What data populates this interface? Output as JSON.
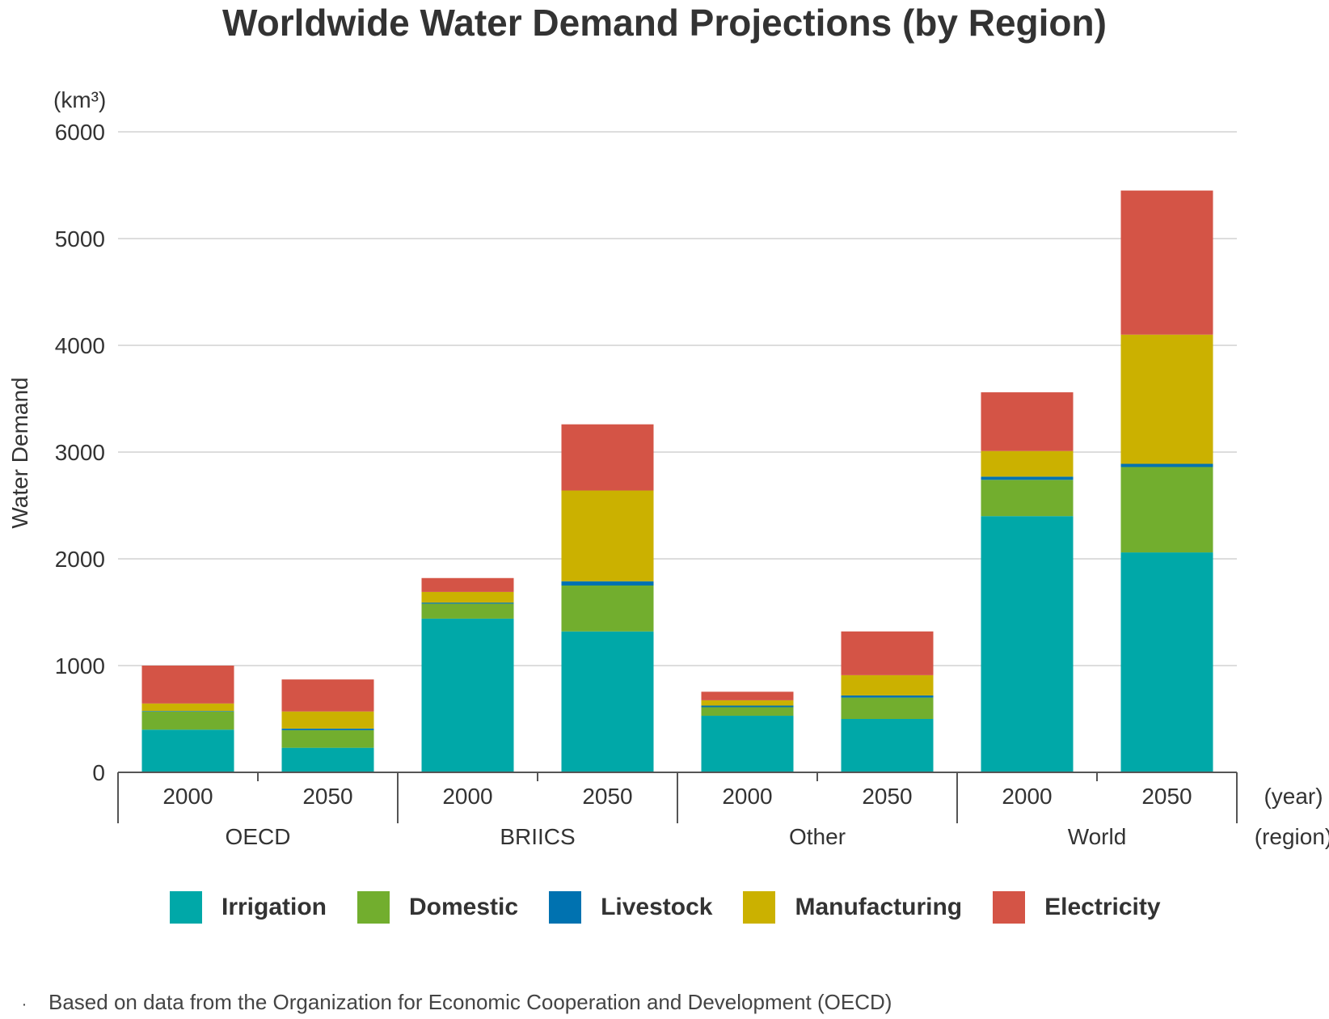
{
  "chart_data": {
    "type": "bar",
    "stacked": true,
    "title": "Worldwide Water Demand Projections (by Region)",
    "ylabel": "Water Demand",
    "yunit": "(km³)",
    "ylim": [
      0,
      6000
    ],
    "yticks": [
      0,
      1000,
      2000,
      3000,
      4000,
      5000,
      6000
    ],
    "grid": true,
    "x_axis_suffix_year": "(year)",
    "x_axis_suffix_region": "(region)",
    "groups": [
      {
        "region": "OECD",
        "years": [
          "2000",
          "2050"
        ]
      },
      {
        "region": "BRIICS",
        "years": [
          "2000",
          "2050"
        ]
      },
      {
        "region": "Other",
        "years": [
          "2000",
          "2050"
        ]
      },
      {
        "region": "World",
        "years": [
          "2000",
          "2050"
        ]
      }
    ],
    "categories": [
      "OECD 2000",
      "OECD 2050",
      "BRIICS 2000",
      "BRIICS 2050",
      "Other 2000",
      "Other 2050",
      "World 2000",
      "World 2050"
    ],
    "series": [
      {
        "name": "Irrigation",
        "color": "#00a8a8",
        "values": [
          400,
          230,
          1440,
          1320,
          530,
          500,
          2400,
          2060
        ]
      },
      {
        "name": "Domestic",
        "color": "#72ae2e",
        "values": [
          170,
          165,
          140,
          430,
          80,
          200,
          340,
          800
        ]
      },
      {
        "name": "Livestock",
        "color": "#0072b0",
        "values": [
          5,
          15,
          10,
          40,
          15,
          20,
          30,
          30
        ]
      },
      {
        "name": "Manufacturing",
        "color": "#cbb100",
        "values": [
          70,
          160,
          100,
          850,
          50,
          190,
          240,
          1210
        ]
      },
      {
        "name": "Electricity",
        "color": "#d45446",
        "values": [
          355,
          300,
          130,
          620,
          80,
          410,
          550,
          1350
        ]
      }
    ],
    "legend_position": "bottom"
  },
  "footnote": {
    "bullet": "·",
    "text": "Based on data from the Organization for Economic Cooperation and Development (OECD)"
  }
}
